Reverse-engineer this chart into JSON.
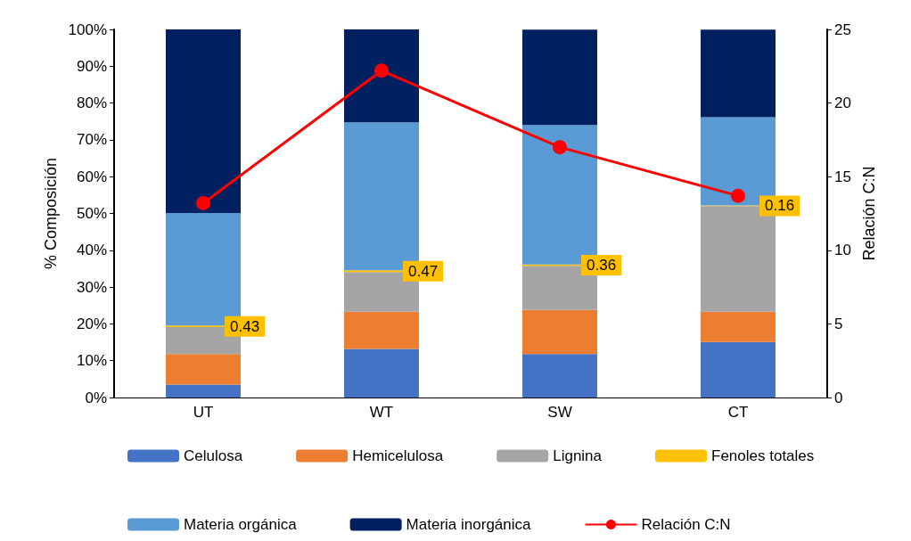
{
  "chart_data": {
    "type": "bar",
    "stacked": true,
    "ylabel": "% Composición",
    "y2label": "Relación C:N",
    "categories": [
      "UT",
      "WT",
      "SW",
      "CT"
    ],
    "series": [
      {
        "name": "Celulosa",
        "color": "#4472c4",
        "values": [
          3.5,
          13.2,
          11.8,
          15.1
        ]
      },
      {
        "name": "Hemicelulosa",
        "color": "#ed7d31",
        "values": [
          8.3,
          10.1,
          12.0,
          8.2
        ]
      },
      {
        "name": "Lignina",
        "color": "#a5a5a5",
        "values": [
          7.3,
          10.8,
          12.0,
          28.7
        ]
      },
      {
        "name": "Fenoles totales",
        "color": "#ffc000",
        "values": [
          0.43,
          0.47,
          0.36,
          0.16
        ],
        "value_labels": [
          "0.43",
          "0.47",
          "0.36",
          "0.16"
        ]
      },
      {
        "name": "Materia orgánica",
        "color": "#5b9bd5",
        "values": [
          30.6,
          40.2,
          37.9,
          24.0
        ]
      },
      {
        "name": "Materia inorgánica",
        "color": "#002060",
        "values": [
          49.9,
          25.2,
          25.9,
          23.8
        ]
      },
      {
        "name": "Relación C:N",
        "type": "line",
        "axis": "y2",
        "color": "#ff0000",
        "marker": "circle",
        "values": [
          13.2,
          22.2,
          17.0,
          13.7
        ]
      }
    ],
    "ylim": [
      0,
      100
    ],
    "yticks": [
      {
        "value": 0,
        "label": "0%"
      },
      {
        "value": 10,
        "label": "10%"
      },
      {
        "value": 20,
        "label": "20%"
      },
      {
        "value": 30,
        "label": "30%"
      },
      {
        "value": 40,
        "label": "40%"
      },
      {
        "value": 50,
        "label": "50%"
      },
      {
        "value": 60,
        "label": "60%"
      },
      {
        "value": 70,
        "label": "70%"
      },
      {
        "value": 80,
        "label": "80%"
      },
      {
        "value": 90,
        "label": "90%"
      },
      {
        "value": 100,
        "label": "100%"
      }
    ],
    "y2lim": [
      0,
      25
    ],
    "y2ticks": [
      0,
      5,
      10,
      15,
      20,
      25
    ],
    "grid": false,
    "legend": "bottom"
  }
}
